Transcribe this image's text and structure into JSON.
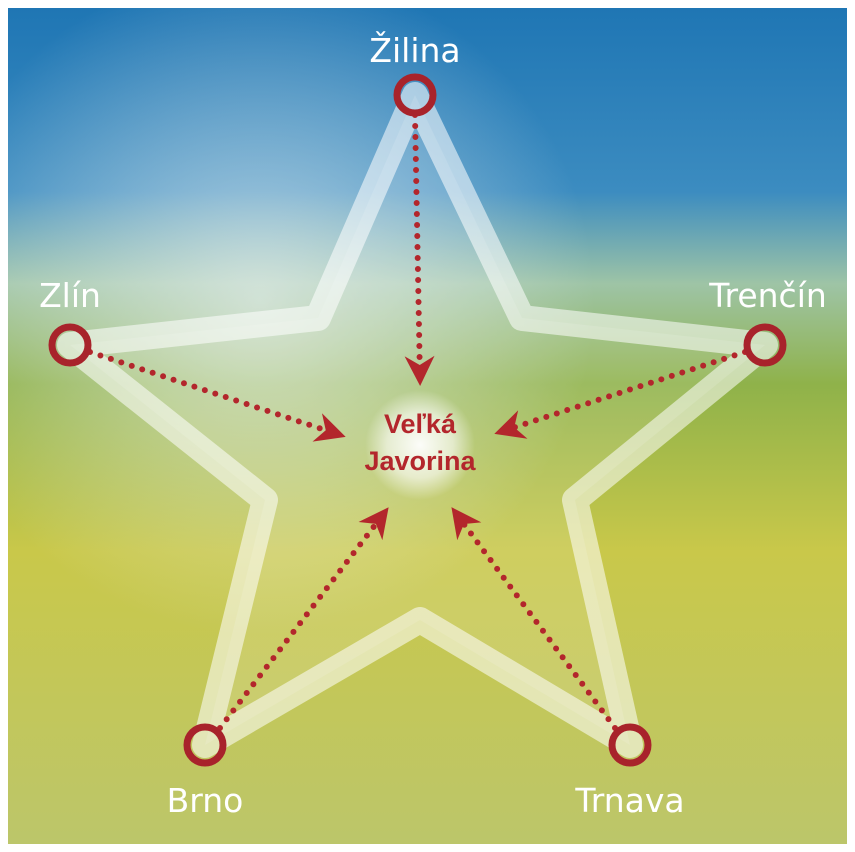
{
  "center": {
    "lines": [
      "Veľká",
      "Javorina"
    ]
  },
  "nodes": [
    {
      "label": "Žilina"
    },
    {
      "label": "Trenčín"
    },
    {
      "label": "Trnava"
    },
    {
      "label": "Brno"
    },
    {
      "label": "Zlín"
    }
  ]
}
